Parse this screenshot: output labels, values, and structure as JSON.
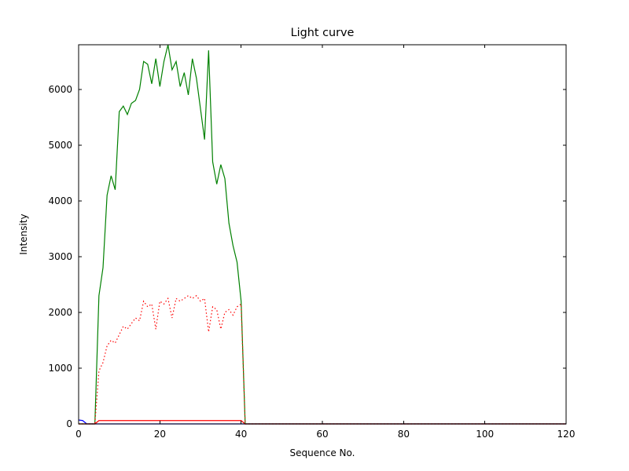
{
  "figure": {
    "background": "#ffffff",
    "frame_color": "#000000"
  },
  "chart_data": {
    "type": "line",
    "title": "Light curve",
    "xlabel": "Sequence No.",
    "ylabel": "Intensity",
    "xlim": [
      0,
      120
    ],
    "ylim": [
      0,
      6800
    ],
    "xticks": [
      0,
      20,
      40,
      60,
      80,
      100,
      120
    ],
    "yticks": [
      0,
      1000,
      2000,
      3000,
      4000,
      5000,
      6000
    ],
    "grid": false,
    "legend": "none",
    "x": [
      0,
      1,
      2,
      3,
      4,
      5,
      6,
      7,
      8,
      9,
      10,
      11,
      12,
      13,
      14,
      15,
      16,
      17,
      18,
      19,
      20,
      21,
      22,
      23,
      24,
      25,
      26,
      27,
      28,
      29,
      30,
      31,
      32,
      33,
      34,
      35,
      36,
      37,
      38,
      39,
      40,
      41,
      120
    ],
    "series": [
      {
        "name": "blue-solid",
        "color": "#0000ff",
        "style": "solid",
        "values": [
          70,
          60,
          0,
          0,
          0,
          0,
          0,
          0,
          0,
          0,
          0,
          0,
          0,
          0,
          0,
          0,
          0,
          0,
          0,
          0,
          0,
          0,
          0,
          0,
          0,
          0,
          0,
          0,
          0,
          0,
          0,
          0,
          0,
          0,
          0,
          0,
          0,
          0,
          0,
          0,
          0,
          0,
          0
        ]
      },
      {
        "name": "green-solid",
        "color": "#008000",
        "style": "solid",
        "values": [
          0,
          0,
          0,
          0,
          0,
          2300,
          2800,
          4100,
          4450,
          4200,
          5600,
          5700,
          5550,
          5750,
          5800,
          6000,
          6500,
          6450,
          6100,
          6550,
          6050,
          6500,
          6800,
          6350,
          6500,
          6050,
          6300,
          5900,
          6550,
          6200,
          5650,
          5100,
          6700,
          4700,
          4300,
          4650,
          4400,
          3600,
          3200,
          2900,
          2200,
          0,
          0
        ]
      },
      {
        "name": "red-dotted",
        "color": "#ff0000",
        "style": "dotted",
        "values": [
          0,
          0,
          0,
          0,
          0,
          950,
          1100,
          1400,
          1500,
          1450,
          1600,
          1750,
          1700,
          1800,
          1900,
          1850,
          2200,
          2100,
          2150,
          1700,
          2200,
          2150,
          2250,
          1900,
          2250,
          2200,
          2250,
          2300,
          2250,
          2300,
          2200,
          2250,
          1650,
          2100,
          2050,
          1700,
          2000,
          2050,
          1950,
          2100,
          2150,
          0,
          0
        ]
      },
      {
        "name": "red-solid",
        "color": "#ff0000",
        "style": "solid",
        "values": [
          0,
          0,
          0,
          0,
          0,
          60,
          60,
          60,
          60,
          60,
          60,
          60,
          60,
          60,
          60,
          60,
          60,
          60,
          60,
          60,
          60,
          60,
          60,
          60,
          60,
          60,
          60,
          60,
          60,
          60,
          60,
          60,
          60,
          60,
          60,
          60,
          60,
          60,
          60,
          60,
          60,
          0,
          0
        ]
      }
    ]
  }
}
